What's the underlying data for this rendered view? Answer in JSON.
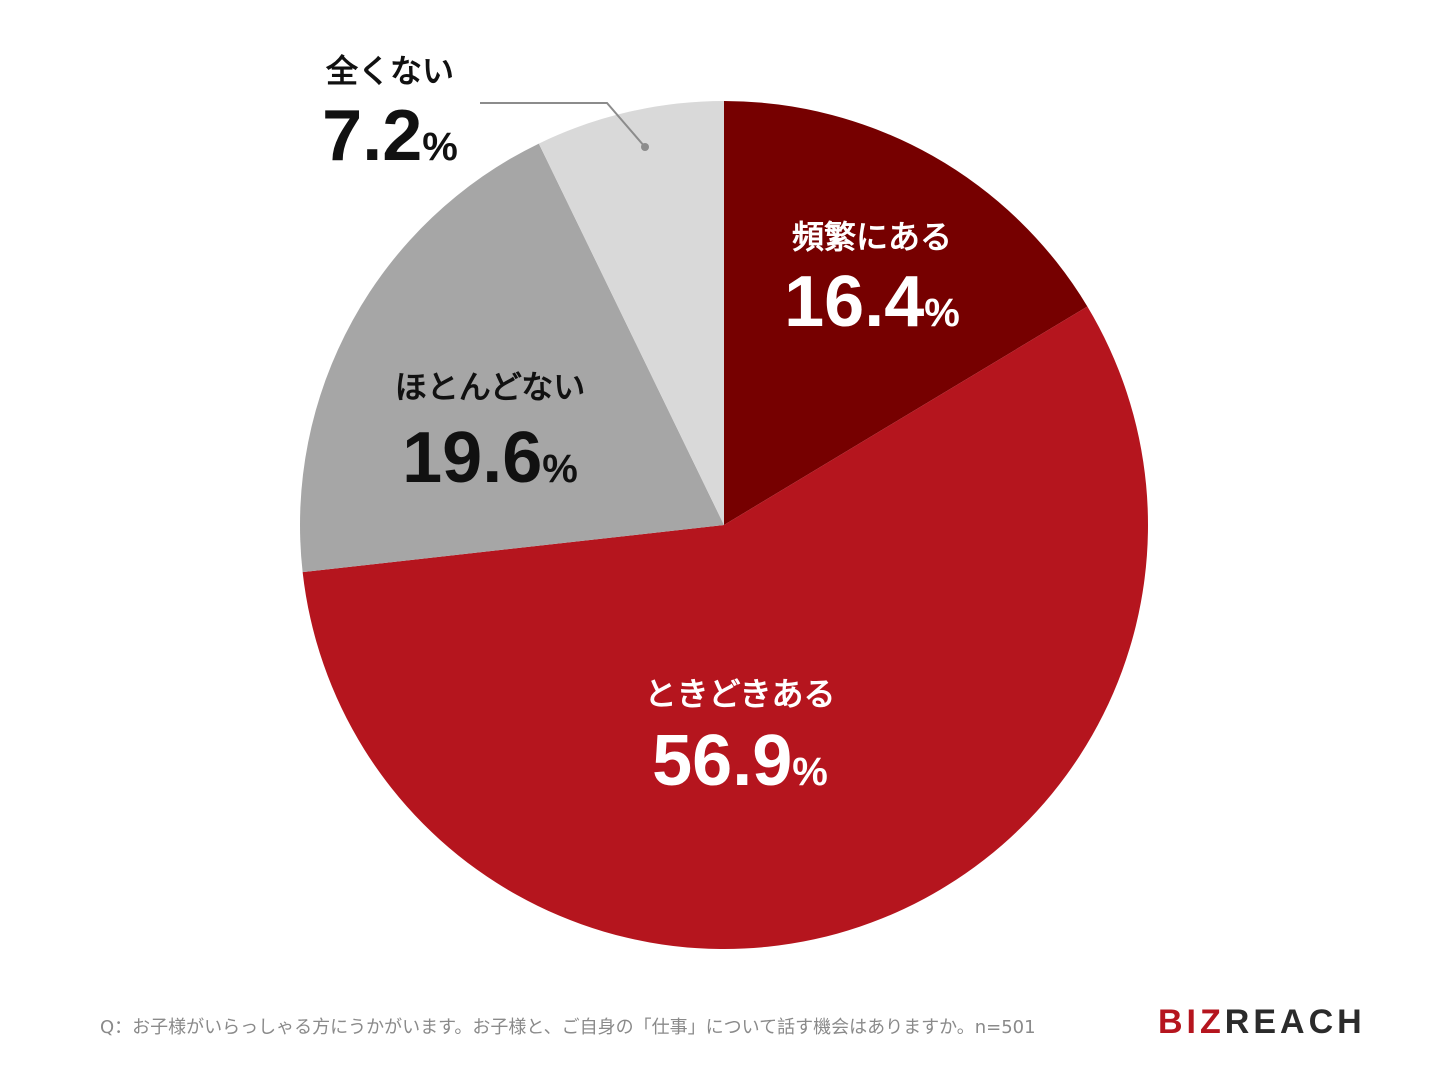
{
  "chart_data": {
    "type": "pie",
    "slices": [
      {
        "label": "頻繁にある",
        "value": 16.4,
        "display": "16.4",
        "color": "#760000",
        "text_color": "#ffffff"
      },
      {
        "label": "ときどきある",
        "value": 56.9,
        "display": "56.9",
        "color": "#b5151e",
        "text_color": "#ffffff"
      },
      {
        "label": "ほとんどない",
        "value": 19.6,
        "display": "19.6",
        "color": "#a6a6a6",
        "text_color": "#111111"
      },
      {
        "label": "全くない",
        "value": 7.2,
        "display": "7.2",
        "color": "#d9d9d9",
        "text_color": "#111111"
      }
    ],
    "unit": "%",
    "start": "12 o'clock",
    "direction": "clockwise"
  },
  "footer": {
    "question": "Q：お子様がいらっしゃる方にうかがいます。お子様と、ご自身の「仕事」について話す機会はありますか。n=501",
    "brand_part1": "BIZ",
    "brand_part2": "REACH"
  }
}
